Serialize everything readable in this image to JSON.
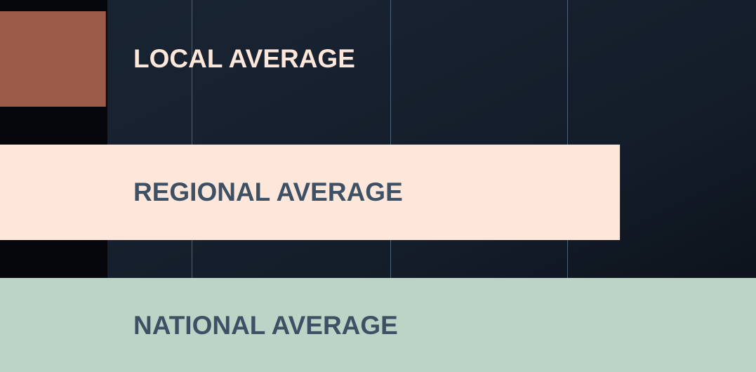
{
  "chart_data": {
    "type": "bar",
    "orientation": "horizontal",
    "categories": [
      "LOCAL AVERAGE",
      "REGIONAL AVERAGE",
      "NATIONAL AVERAGE"
    ],
    "values": [
      14,
      82,
      100
    ],
    "colors": [
      "#9c5a48",
      "#fde6da",
      "#bbd4c6"
    ],
    "label_colors": [
      "#fde6da",
      "#3e5064",
      "#3e5064"
    ],
    "xlim": [
      0,
      100
    ]
  }
}
